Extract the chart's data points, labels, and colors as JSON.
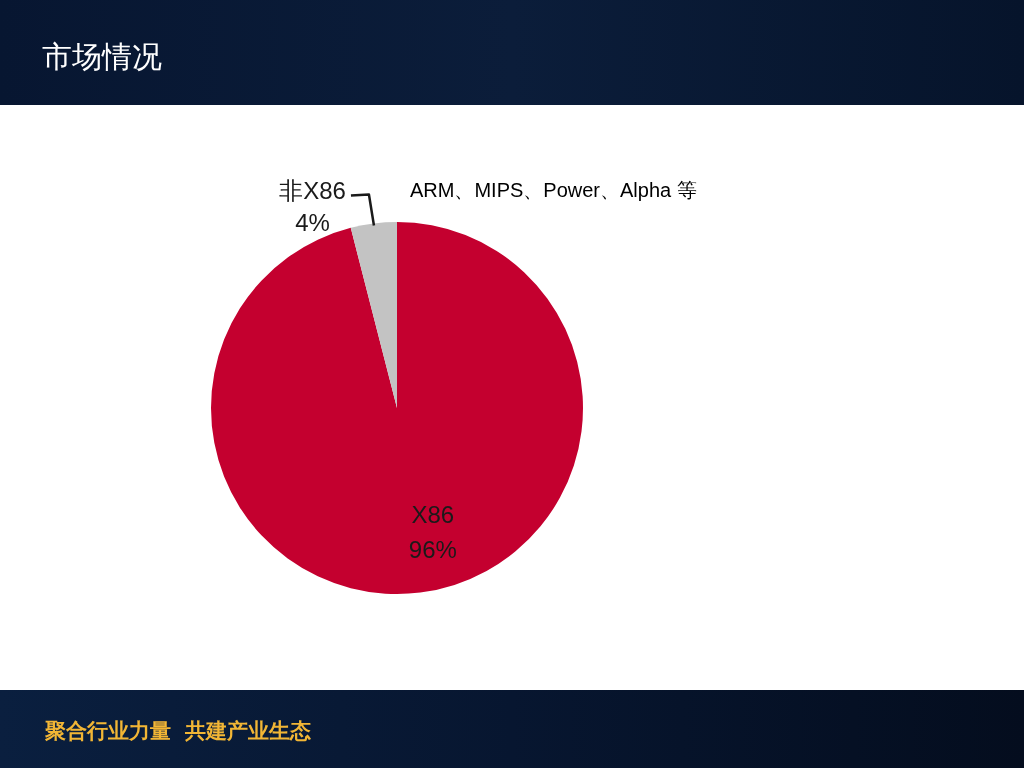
{
  "chart_data": {
    "type": "pie",
    "title": "市场情况",
    "categories": [
      "X86",
      "非X86"
    ],
    "values": [
      96,
      4
    ],
    "colors": [
      "#c4002f",
      "#c3c3c3"
    ],
    "value_labels": [
      "96%",
      "4%"
    ],
    "annotations": [
      "ARM、MIPS、Power、Alpha 等",
      "聚合行业力量 共建产业生态"
    ]
  }
}
